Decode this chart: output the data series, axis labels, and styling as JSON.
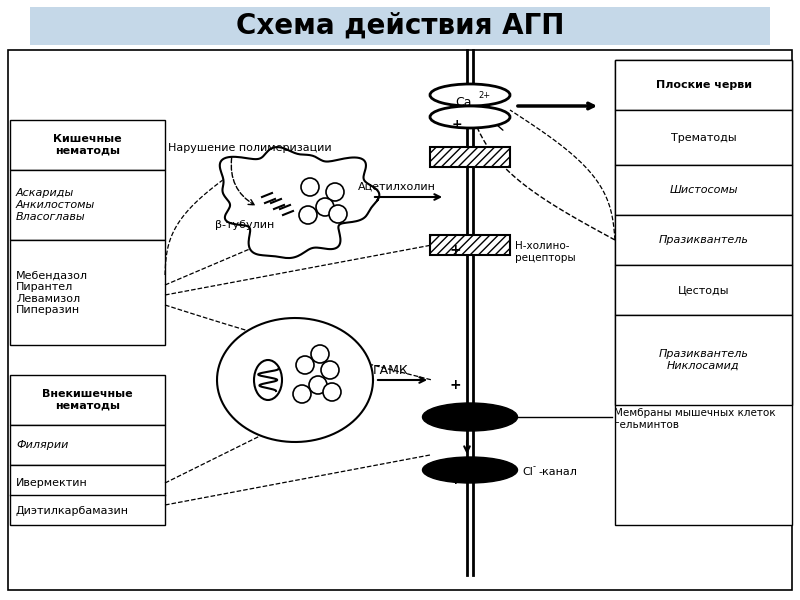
{
  "title": "Схема действия АГП",
  "title_fontsize": 20,
  "bg_color": "#ffffff",
  "header_bg": "#c5d8e8",
  "left_boxes": {
    "intestinal_header": "Кишечные\nнематоды",
    "intestinal_worms": "Аскариды\nАнкилостомы\nВласоглавы",
    "intestinal_drugs": "Мебендазол\nПирантел\nЛевамизол\nПиперазин",
    "extra_header": "Внекишечные\nнематоды",
    "extra_worms": "Филярии",
    "extra_drugs_1": "Ивермектин",
    "extra_drugs_2": "Диэтилкарбамазин"
  },
  "right_boxes": {
    "flat_header": "Плоские черви",
    "trematody": "Трематоды",
    "shistosomy": "Шистосомы",
    "prazikvantel1": "Празиквантель",
    "tsestody": "Цестоды",
    "prazikvantel2": "Празиквантель\nНиклосамид"
  },
  "center_labels": {
    "narushenie": "Нарушение полимеризации",
    "beta_tubulin": "β-тубулин",
    "acetylcholine": "Ацетилхолин",
    "ca2": "Ca",
    "ca2_sup": "2+",
    "gamk": "ГАМК",
    "n_holino": "Н-холино-\nрецепторы",
    "membrany": "Мембраны мышечных клеток\nгельминтов",
    "cl_kanal": "Cl",
    "cl_kanal_sup": "-",
    "cl_kanal_rest": "-канал"
  }
}
